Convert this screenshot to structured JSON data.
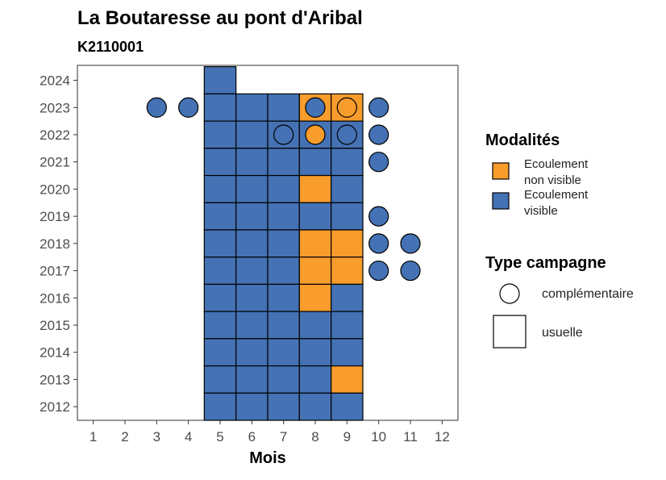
{
  "chart_data": {
    "type": "heatmap",
    "title": "La Boutaresse au pont d'Aribal",
    "subtitle": "K2110001",
    "xlabel": "Mois",
    "ylabel": "",
    "x_ticks": [
      "1",
      "2",
      "3",
      "4",
      "5",
      "6",
      "7",
      "8",
      "9",
      "10",
      "11",
      "12"
    ],
    "y_ticks": [
      "2012",
      "2013",
      "2014",
      "2015",
      "2016",
      "2017",
      "2018",
      "2019",
      "2020",
      "2021",
      "2022",
      "2023",
      "2024"
    ],
    "xlim": [
      0.5,
      12.5
    ],
    "ylim": [
      2011.5,
      2024.55
    ],
    "grid": false,
    "legend_position": "right",
    "colors": {
      "Ecoulement non visible": "#F89C2C",
      "Ecoulement visible": "#4472B4"
    },
    "legend": {
      "fill_title": "Modalités",
      "fill_entries": [
        {
          "key": "Ecoulement non visible",
          "line1": "Ecoulement",
          "line2": "non visible"
        },
        {
          "key": "Ecoulement visible",
          "line1": "Ecoulement",
          "line2": "visible"
        }
      ],
      "shape_title": "Type campagne",
      "shape_entries": [
        {
          "shape": "circle",
          "label": "complémentaire"
        },
        {
          "shape": "square",
          "label": "usuelle"
        }
      ]
    },
    "usuelle": [
      {
        "year": 2024,
        "months": [
          5
        ],
        "modalites": [
          "Ecoulement visible"
        ]
      },
      {
        "year": 2023,
        "months": [
          5,
          6,
          7,
          8,
          9
        ],
        "modalites": [
          "Ecoulement visible",
          "Ecoulement visible",
          "Ecoulement visible",
          "Ecoulement non visible",
          "Ecoulement non visible"
        ]
      },
      {
        "year": 2022,
        "months": [
          5,
          6,
          7,
          8,
          9
        ],
        "modalites": [
          "Ecoulement visible",
          "Ecoulement visible",
          "Ecoulement visible",
          "Ecoulement visible",
          "Ecoulement visible"
        ]
      },
      {
        "year": 2021,
        "months": [
          5,
          6,
          7,
          8,
          9
        ],
        "modalites": [
          "Ecoulement visible",
          "Ecoulement visible",
          "Ecoulement visible",
          "Ecoulement visible",
          "Ecoulement visible"
        ]
      },
      {
        "year": 2020,
        "months": [
          5,
          6,
          7,
          8,
          9
        ],
        "modalites": [
          "Ecoulement visible",
          "Ecoulement visible",
          "Ecoulement visible",
          "Ecoulement non visible",
          "Ecoulement visible"
        ]
      },
      {
        "year": 2019,
        "months": [
          5,
          6,
          7,
          8,
          9
        ],
        "modalites": [
          "Ecoulement visible",
          "Ecoulement visible",
          "Ecoulement visible",
          "Ecoulement visible",
          "Ecoulement visible"
        ]
      },
      {
        "year": 2018,
        "months": [
          5,
          6,
          7,
          8,
          9
        ],
        "modalites": [
          "Ecoulement visible",
          "Ecoulement visible",
          "Ecoulement visible",
          "Ecoulement non visible",
          "Ecoulement non visible"
        ]
      },
      {
        "year": 2017,
        "months": [
          5,
          6,
          7,
          8,
          9
        ],
        "modalites": [
          "Ecoulement visible",
          "Ecoulement visible",
          "Ecoulement visible",
          "Ecoulement non visible",
          "Ecoulement non visible"
        ]
      },
      {
        "year": 2016,
        "months": [
          5,
          6,
          7,
          8,
          9
        ],
        "modalites": [
          "Ecoulement visible",
          "Ecoulement visible",
          "Ecoulement visible",
          "Ecoulement non visible",
          "Ecoulement visible"
        ]
      },
      {
        "year": 2015,
        "months": [
          5,
          6,
          7,
          8,
          9
        ],
        "modalites": [
          "Ecoulement visible",
          "Ecoulement visible",
          "Ecoulement visible",
          "Ecoulement visible",
          "Ecoulement visible"
        ]
      },
      {
        "year": 2014,
        "months": [
          5,
          6,
          7,
          8,
          9
        ],
        "modalites": [
          "Ecoulement visible",
          "Ecoulement visible",
          "Ecoulement visible",
          "Ecoulement visible",
          "Ecoulement visible"
        ]
      },
      {
        "year": 2013,
        "months": [
          5,
          6,
          7,
          8,
          9
        ],
        "modalites": [
          "Ecoulement visible",
          "Ecoulement visible",
          "Ecoulement visible",
          "Ecoulement visible",
          "Ecoulement non visible"
        ]
      },
      {
        "year": 2012,
        "months": [
          5,
          6,
          7,
          8,
          9
        ],
        "modalites": [
          "Ecoulement visible",
          "Ecoulement visible",
          "Ecoulement visible",
          "Ecoulement visible",
          "Ecoulement visible"
        ]
      }
    ],
    "complementaire": [
      {
        "year": 2023,
        "month": 3,
        "modalite": "Ecoulement visible"
      },
      {
        "year": 2023,
        "month": 4,
        "modalite": "Ecoulement visible"
      },
      {
        "year": 2023,
        "month": 8,
        "modalite": "Ecoulement visible"
      },
      {
        "year": 2023,
        "month": 9,
        "modalite": "Ecoulement non visible"
      },
      {
        "year": 2023,
        "month": 10,
        "modalite": "Ecoulement visible"
      },
      {
        "year": 2022,
        "month": 7,
        "modalite": "Ecoulement visible"
      },
      {
        "year": 2022,
        "month": 8,
        "modalite": "Ecoulement non visible"
      },
      {
        "year": 2022,
        "month": 9,
        "modalite": "Ecoulement visible"
      },
      {
        "year": 2022,
        "month": 10,
        "modalite": "Ecoulement visible"
      },
      {
        "year": 2021,
        "month": 10,
        "modalite": "Ecoulement visible"
      },
      {
        "year": 2019,
        "month": 10,
        "modalite": "Ecoulement visible"
      },
      {
        "year": 2018,
        "month": 10,
        "modalite": "Ecoulement visible"
      },
      {
        "year": 2018,
        "month": 11,
        "modalite": "Ecoulement visible"
      },
      {
        "year": 2017,
        "month": 10,
        "modalite": "Ecoulement visible"
      },
      {
        "year": 2017,
        "month": 11,
        "modalite": "Ecoulement visible"
      }
    ]
  }
}
